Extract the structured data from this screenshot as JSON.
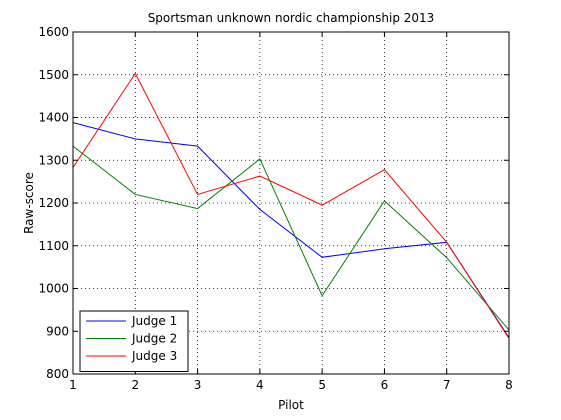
{
  "chart_data": {
    "type": "line",
    "title": "Sportsman unknown nordic championship 2013",
    "xlabel": "Pilot",
    "ylabel": "Raw-score",
    "x": [
      1,
      2,
      3,
      4,
      5,
      6,
      7,
      8
    ],
    "xlim": [
      1,
      8
    ],
    "ylim": [
      800,
      1600
    ],
    "xticks": [
      1,
      2,
      3,
      4,
      5,
      6,
      7,
      8
    ],
    "yticks": [
      800,
      900,
      1000,
      1100,
      1200,
      1300,
      1400,
      1500,
      1600
    ],
    "grid": true,
    "grid_style": "dotted",
    "legend_position": "bottom-left",
    "series": [
      {
        "name": "Judge 1",
        "color": "#0000ff",
        "values": [
          1388,
          1350,
          1333,
          1185,
          1073,
          1093,
          1108,
          885
        ]
      },
      {
        "name": "Judge 2",
        "color": "#008000",
        "values": [
          1333,
          1220,
          1187,
          1303,
          983,
          1205,
          1072,
          903
        ]
      },
      {
        "name": "Judge 3",
        "color": "#ff0000",
        "values": [
          1283,
          1503,
          1220,
          1263,
          1195,
          1278,
          1108,
          883
        ]
      }
    ]
  }
}
